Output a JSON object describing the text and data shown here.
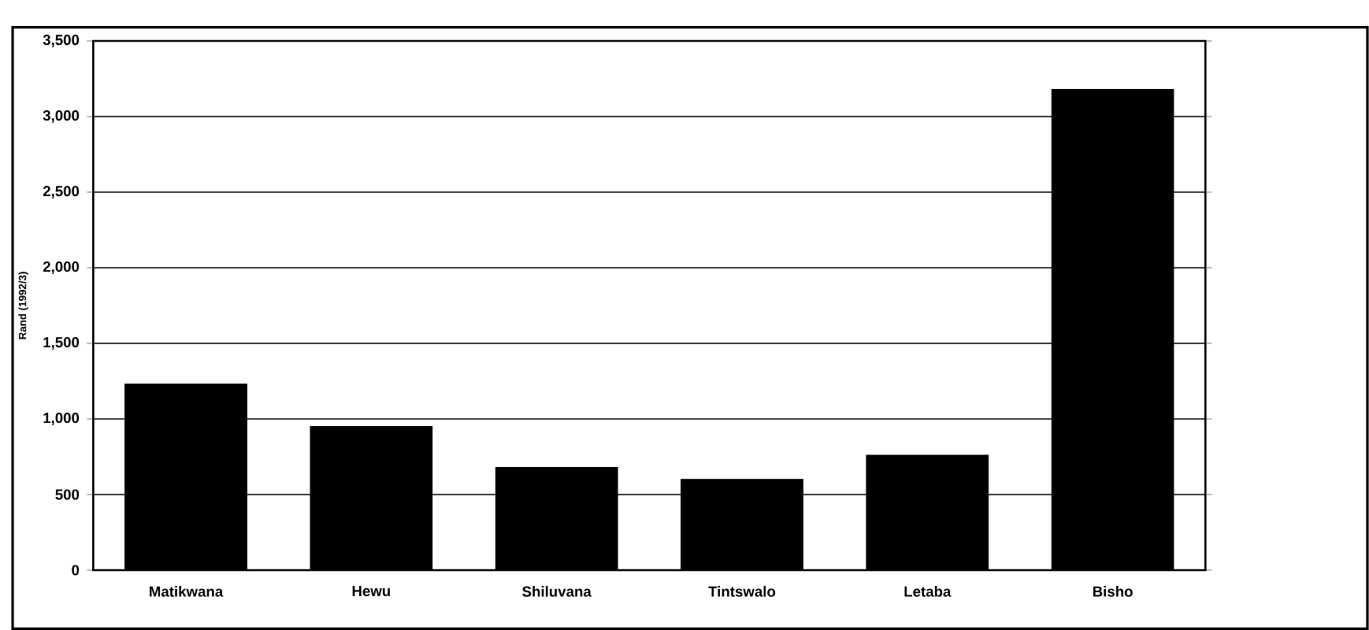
{
  "chart_data": {
    "type": "bar",
    "ylabel": "Rand (1992/3)",
    "categories": [
      "Matikwana",
      "Hewu",
      "Shiluvana",
      "Tintswalo",
      "Letaba",
      "Bisho"
    ],
    "values": [
      1230,
      950,
      680,
      600,
      760,
      3180
    ],
    "color": "#000000",
    "ylim": [
      0,
      3500
    ],
    "yticks": [
      0,
      {
        "value": 500,
        "label": "500"
      },
      {
        "value": 1000,
        "label": "1,000"
      },
      {
        "value": 1500,
        "label": "1,500"
      },
      {
        "value": 2000,
        "label": "2,000"
      },
      {
        "value": 2500,
        "label": "2,500"
      },
      {
        "value": 3000,
        "label": "3,000"
      },
      {
        "value": 3500,
        "label": "3,500"
      }
    ],
    "grid": "y"
  }
}
